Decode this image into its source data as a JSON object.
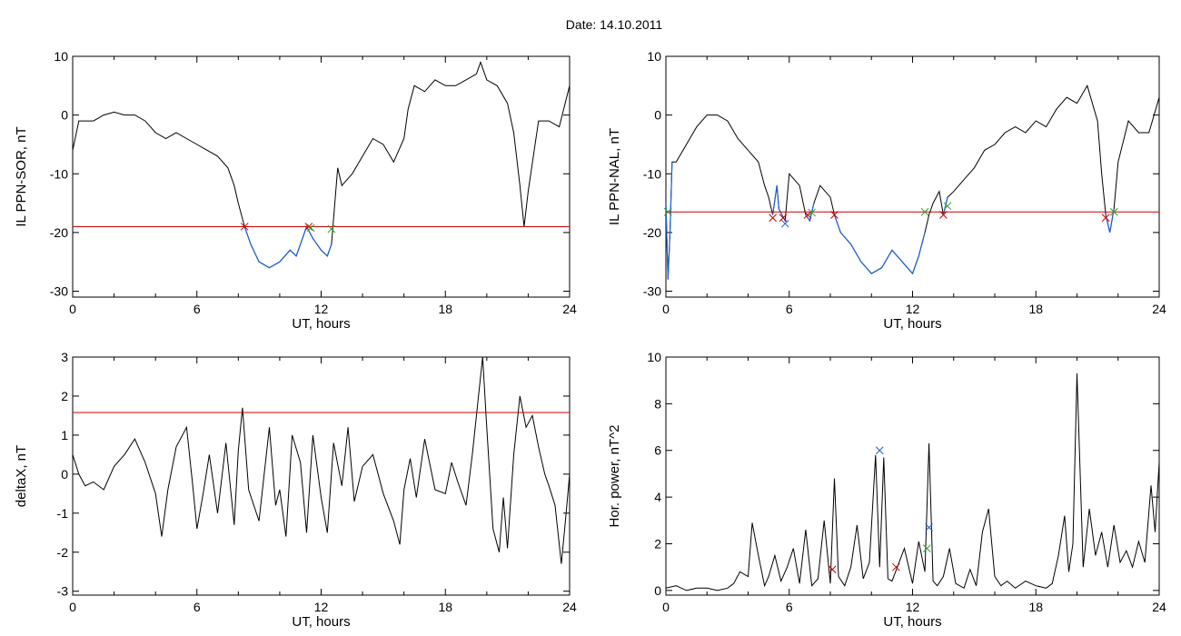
{
  "page": {
    "title": "Date:  14.10.2011"
  },
  "chart_data": [
    {
      "type": "line",
      "xlabel": "UT, hours",
      "ylabel": "IL PPN-SOR, nT",
      "xlim": [
        0,
        24
      ],
      "ylim": [
        -31,
        10
      ],
      "xticks": [
        "0",
        "6",
        "12",
        "18",
        "24"
      ],
      "yticks": [
        "10",
        "0",
        "-10",
        "-20",
        "-30"
      ],
      "threshold": -19,
      "threshold_color": "#cc0000",
      "highlight_color": "#1f5fd6",
      "highlight_ranges": [
        [
          8.3,
          12.5
        ]
      ],
      "markers": [
        {
          "x": 8.3,
          "y": -19,
          "color": "#cc0000",
          "shape": "x"
        },
        {
          "x": 11.4,
          "y": -19,
          "color": "#cc0000",
          "shape": "x"
        },
        {
          "x": 11.5,
          "y": -19.2,
          "color": "#2ca02c",
          "shape": "x"
        },
        {
          "x": 12.5,
          "y": -19.4,
          "color": "#2ca02c",
          "shape": "x"
        }
      ],
      "series": [
        {
          "color": "#000000",
          "x": [
            0,
            0.3,
            0.6,
            1,
            1.5,
            2,
            2.5,
            3,
            3.5,
            4,
            4.5,
            5,
            5.5,
            6,
            6.5,
            7,
            7.5,
            7.8,
            8,
            8.3,
            8.6,
            9,
            9.5,
            10,
            10.5,
            10.8,
            11,
            11.3,
            11.6,
            12,
            12.3,
            12.5,
            12.8,
            13,
            13.5,
            14,
            14.5,
            15,
            15.5,
            16,
            16.2,
            16.5,
            17,
            17.5,
            18,
            18.5,
            19,
            19.5,
            19.7,
            20,
            20.5,
            21,
            21.3,
            21.6,
            21.8,
            22,
            22.5,
            23,
            23.5,
            24
          ],
          "y": [
            -6,
            -1,
            -1,
            -1,
            0,
            0.5,
            0,
            0,
            -1,
            -3,
            -4,
            -3,
            -4,
            -5,
            -6,
            -7,
            -9,
            -12,
            -15,
            -19,
            -22,
            -25,
            -26,
            -25,
            -23,
            -24,
            -22,
            -19,
            -21,
            -23,
            -24,
            -22,
            -9,
            -12,
            -10,
            -7,
            -4,
            -5,
            -8,
            -4,
            1,
            5,
            4,
            6,
            5,
            5,
            6,
            7,
            9,
            6,
            5,
            2,
            -3,
            -12,
            -19,
            -13,
            -1,
            -1,
            -2,
            5
          ]
        }
      ]
    },
    {
      "type": "line",
      "xlabel": "UT, hours",
      "ylabel": "IL PPN-NAL, nT",
      "xlim": [
        0,
        24
      ],
      "ylim": [
        -31,
        10
      ],
      "xticks": [
        "0",
        "6",
        "12",
        "18",
        "24"
      ],
      "yticks": [
        "10",
        "0",
        "-10",
        "-20",
        "-30"
      ],
      "threshold": -16.5,
      "threshold_color": "#cc0000",
      "highlight_color": "#1f5fd6",
      "highlight_ranges": [
        [
          0,
          0.3
        ],
        [
          5.2,
          5.8
        ],
        [
          6.8,
          7.2
        ],
        [
          8.2,
          12.7
        ],
        [
          13.4,
          13.7
        ],
        [
          21.4,
          21.8
        ]
      ],
      "markers": [
        {
          "x": 0.1,
          "y": -16.5,
          "color": "#2ca02c",
          "shape": "x"
        },
        {
          "x": 5.2,
          "y": -17.5,
          "color": "#cc0000",
          "shape": "x"
        },
        {
          "x": 5.7,
          "y": -17.5,
          "color": "#cc0000",
          "shape": "x"
        },
        {
          "x": 5.8,
          "y": -18.5,
          "color": "#1f5fd6",
          "shape": "x"
        },
        {
          "x": 6.9,
          "y": -17,
          "color": "#cc0000",
          "shape": "x"
        },
        {
          "x": 7.1,
          "y": -16.6,
          "color": "#2ca02c",
          "shape": "x"
        },
        {
          "x": 8.2,
          "y": -17,
          "color": "#cc0000",
          "shape": "x"
        },
        {
          "x": 12.6,
          "y": -16.5,
          "color": "#2ca02c",
          "shape": "x"
        },
        {
          "x": 13.5,
          "y": -17,
          "color": "#cc0000",
          "shape": "x"
        },
        {
          "x": 13.7,
          "y": -15.5,
          "color": "#2ca02c",
          "shape": "x"
        },
        {
          "x": 21.4,
          "y": -17.5,
          "color": "#cc0000",
          "shape": "x"
        },
        {
          "x": 21.8,
          "y": -16.5,
          "color": "#2ca02c",
          "shape": "x"
        }
      ],
      "series": [
        {
          "color": "#000000",
          "x": [
            0,
            0.1,
            0.2,
            0.3,
            0.5,
            1,
            1.5,
            2,
            2.5,
            3,
            3.5,
            4,
            4.5,
            4.8,
            5,
            5.2,
            5.4,
            5.5,
            5.8,
            6,
            6.5,
            6.8,
            7,
            7.2,
            7.5,
            8,
            8.2,
            8.5,
            9,
            9.5,
            10,
            10.5,
            11,
            11.5,
            12,
            12.3,
            12.6,
            12.8,
            13,
            13.3,
            13.5,
            13.7,
            14,
            14.5,
            15,
            15.5,
            16,
            16.5,
            17,
            17.5,
            18,
            18.5,
            19,
            19.5,
            20,
            20.5,
            21,
            21.2,
            21.4,
            21.6,
            21.8,
            22,
            22.5,
            23,
            23.5,
            24
          ],
          "y": [
            -15,
            -28,
            -20,
            -8,
            -8,
            -5,
            -2,
            0,
            0,
            -1,
            -4,
            -6,
            -8,
            -12,
            -14,
            -17,
            -12,
            -16,
            -18,
            -10,
            -12,
            -17,
            -18,
            -15,
            -12,
            -14,
            -17,
            -20,
            -22,
            -25,
            -27,
            -26,
            -23,
            -25,
            -27,
            -24,
            -20,
            -17,
            -15,
            -13,
            -17,
            -14,
            -13,
            -11,
            -9,
            -6,
            -5,
            -3,
            -2,
            -3,
            -1,
            -2,
            1,
            3,
            2,
            5,
            -1,
            -10,
            -17,
            -20,
            -16,
            -8,
            -1,
            -3,
            -3,
            3
          ]
        }
      ]
    },
    {
      "type": "line",
      "xlabel": "UT, hours",
      "ylabel": "deltaX, nT",
      "xlim": [
        0,
        24
      ],
      "ylim": [
        -3.1,
        3.0
      ],
      "xticks": [
        "0",
        "6",
        "12",
        "18",
        "24"
      ],
      "yticks": [
        "3",
        "2",
        "1",
        "0",
        "-1",
        "-2",
        "-3"
      ],
      "threshold": 1.58,
      "threshold_color": "#cc0000",
      "series": [
        {
          "color": "#000000",
          "x": [
            0,
            0.3,
            0.6,
            1,
            1.5,
            2,
            2.5,
            3,
            3.5,
            4,
            4.3,
            4.6,
            5,
            5.5,
            5.8,
            6,
            6.3,
            6.6,
            7,
            7.4,
            7.8,
            8,
            8.2,
            8.5,
            9,
            9.5,
            9.8,
            10,
            10.3,
            10.6,
            11,
            11.3,
            11.6,
            12,
            12.3,
            12.6,
            13,
            13.3,
            13.6,
            14,
            14.5,
            15,
            15.5,
            15.8,
            16,
            16.3,
            16.6,
            17,
            17.5,
            18,
            18.3,
            18.6,
            19,
            19.3,
            19.6,
            19.8,
            20,
            20.3,
            20.6,
            20.8,
            21,
            21.3,
            21.6,
            21.9,
            22.2,
            22.5,
            22.8,
            23,
            23.3,
            23.6,
            23.8,
            24
          ],
          "y": [
            0.5,
            0,
            -0.3,
            -0.2,
            -0.4,
            0.2,
            0.5,
            0.9,
            0.3,
            -0.5,
            -1.6,
            -0.4,
            0.7,
            1.2,
            -0.3,
            -1.4,
            -0.5,
            0.5,
            -1.0,
            0.8,
            -1.3,
            0.6,
            1.7,
            -0.4,
            -1.2,
            1.2,
            -0.8,
            -0.4,
            -1.6,
            1.0,
            0.3,
            -1.5,
            1.0,
            -0.6,
            -1.5,
            0.8,
            -0.3,
            1.2,
            -0.7,
            0.2,
            0.5,
            -0.5,
            -1.2,
            -1.8,
            -0.4,
            0.4,
            -0.6,
            0.9,
            -0.4,
            -0.5,
            0.3,
            -0.2,
            -0.8,
            0.5,
            2.0,
            3.0,
            1.2,
            -1.4,
            -2.0,
            -0.6,
            -1.9,
            0.5,
            2.0,
            1.2,
            1.5,
            0.7,
            0,
            -0.3,
            -0.8,
            -2.3,
            -1.2,
            0
          ]
        }
      ]
    },
    {
      "type": "line",
      "xlabel": "UT, hours",
      "ylabel": "Hor. power, nT^2",
      "xlim": [
        0,
        24
      ],
      "ylim": [
        -0.2,
        10
      ],
      "xticks": [
        "0",
        "6",
        "12",
        "18",
        "24"
      ],
      "yticks": [
        "10",
        "8",
        "6",
        "4",
        "2",
        "0"
      ],
      "markers": [
        {
          "x": 8.1,
          "y": 0.9,
          "color": "#cc0000",
          "shape": "x"
        },
        {
          "x": 10.4,
          "y": 6.0,
          "color": "#1f5fd6",
          "shape": "x"
        },
        {
          "x": 11.2,
          "y": 1.0,
          "color": "#cc0000",
          "shape": "x"
        },
        {
          "x": 12.7,
          "y": 1.8,
          "color": "#2ca02c",
          "shape": "x"
        },
        {
          "x": 12.8,
          "y": 2.7,
          "color": "#1f5fd6",
          "shape": "x"
        }
      ],
      "series": [
        {
          "color": "#000000",
          "x": [
            0,
            0.5,
            1,
            1.5,
            2,
            2.5,
            3,
            3.3,
            3.6,
            4,
            4.2,
            4.5,
            4.8,
            5,
            5.3,
            5.6,
            5.9,
            6.2,
            6.5,
            6.8,
            7.1,
            7.4,
            7.7,
            8,
            8.2,
            8.4,
            8.7,
            9,
            9.3,
            9.6,
            9.9,
            10.2,
            10.4,
            10.6,
            10.8,
            11,
            11.3,
            11.6,
            12,
            12.3,
            12.6,
            12.8,
            13,
            13.2,
            13.5,
            13.8,
            14.1,
            14.5,
            14.8,
            15.1,
            15.4,
            15.7,
            16,
            16.3,
            16.6,
            17,
            17.5,
            18,
            18.5,
            18.8,
            19.1,
            19.4,
            19.6,
            19.8,
            20,
            20.3,
            20.6,
            20.9,
            21.2,
            21.5,
            21.8,
            22.1,
            22.4,
            22.7,
            23,
            23.3,
            23.6,
            23.8,
            24
          ],
          "y": [
            0.1,
            0.2,
            0,
            0.1,
            0.1,
            0,
            0.1,
            0.3,
            0.8,
            0.6,
            2.9,
            1.5,
            0.2,
            0.6,
            1.5,
            0.4,
            1.0,
            1.8,
            0.3,
            2.6,
            0.2,
            0.5,
            3.0,
            0.3,
            4.8,
            0.6,
            0.2,
            1.0,
            2.8,
            0.5,
            1.2,
            5.8,
            1.0,
            5.7,
            0.5,
            0.4,
            1.1,
            1.8,
            0.3,
            2.1,
            0.8,
            6.3,
            0.4,
            0.2,
            0.6,
            1.8,
            0.3,
            0.1,
            0.9,
            0.2,
            2.5,
            3.5,
            0.6,
            0.2,
            0.4,
            0.1,
            0.4,
            0.2,
            0.1,
            0.3,
            1.5,
            3.2,
            0.8,
            2.0,
            9.3,
            1.0,
            3.5,
            1.5,
            2.5,
            1.0,
            2.8,
            1.2,
            1.7,
            1.0,
            2.1,
            1.2,
            4.5,
            2.5,
            5.5
          ]
        }
      ]
    }
  ]
}
